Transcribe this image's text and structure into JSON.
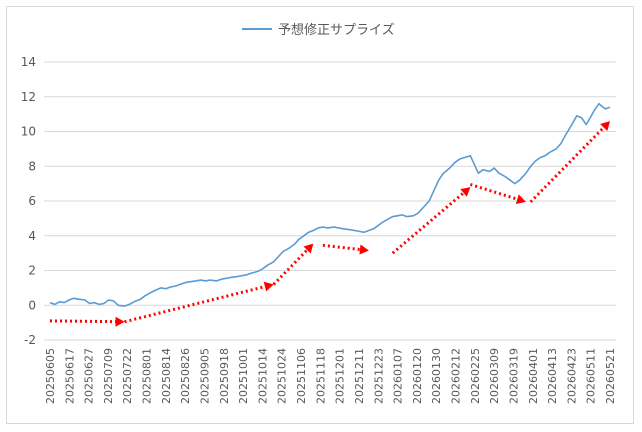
{
  "chart_data": {
    "type": "line",
    "legend": {
      "position": "top-center"
    },
    "series": [
      {
        "name": "予想修正サプライズ",
        "color": "#5b9bd5",
        "points": [
          [
            "20250605",
            0.15
          ],
          [
            "20250608",
            0.05
          ],
          [
            "20250611",
            0.2
          ],
          [
            "20250614",
            0.15
          ],
          [
            "20250617",
            0.3
          ],
          [
            "20250620",
            0.4
          ],
          [
            "20250623",
            0.35
          ],
          [
            "20250627",
            0.3
          ],
          [
            "20250630",
            0.1
          ],
          [
            "20250703",
            0.15
          ],
          [
            "20250706",
            0.05
          ],
          [
            "20250709",
            0.1
          ],
          [
            "20250712",
            0.3
          ],
          [
            "20250715",
            0.25
          ],
          [
            "20250718",
            0.0
          ],
          [
            "20250722",
            -0.05
          ],
          [
            "20250725",
            0.05
          ],
          [
            "20250728",
            0.2
          ],
          [
            "20250801",
            0.35
          ],
          [
            "20250804",
            0.55
          ],
          [
            "20250807",
            0.7
          ],
          [
            "20250810",
            0.85
          ],
          [
            "20250814",
            1.0
          ],
          [
            "20250817",
            0.95
          ],
          [
            "20250820",
            1.05
          ],
          [
            "20250823",
            1.1
          ],
          [
            "20250826",
            1.2
          ],
          [
            "20250829",
            1.3
          ],
          [
            "20250901",
            1.35
          ],
          [
            "20250905",
            1.4
          ],
          [
            "20250908",
            1.45
          ],
          [
            "20250911",
            1.4
          ],
          [
            "20250914",
            1.45
          ],
          [
            "20250918",
            1.4
          ],
          [
            "20250921",
            1.5
          ],
          [
            "20250924",
            1.55
          ],
          [
            "20250927",
            1.6
          ],
          [
            "20251001",
            1.65
          ],
          [
            "20251004",
            1.7
          ],
          [
            "20251007",
            1.75
          ],
          [
            "20251010",
            1.85
          ],
          [
            "20251014",
            1.95
          ],
          [
            "20251017",
            2.1
          ],
          [
            "20251020",
            2.3
          ],
          [
            "20251024",
            2.5
          ],
          [
            "20251027",
            2.8
          ],
          [
            "20251030",
            3.1
          ],
          [
            "20251103",
            3.3
          ],
          [
            "20251106",
            3.5
          ],
          [
            "20251109",
            3.8
          ],
          [
            "20251112",
            4.0
          ],
          [
            "20251115",
            4.2
          ],
          [
            "20251118",
            4.3
          ],
          [
            "20251121",
            4.45
          ],
          [
            "20251124",
            4.5
          ],
          [
            "20251127",
            4.45
          ],
          [
            "20251201",
            4.5
          ],
          [
            "20251204",
            4.45
          ],
          [
            "20251207",
            4.4
          ],
          [
            "20251211",
            4.35
          ],
          [
            "20251214",
            4.3
          ],
          [
            "20251217",
            4.25
          ],
          [
            "20251220",
            4.2
          ],
          [
            "20251223",
            4.3
          ],
          [
            "20251226",
            4.4
          ],
          [
            "20251229",
            4.6
          ],
          [
            "20260101",
            4.8
          ],
          [
            "20260104",
            4.95
          ],
          [
            "20260107",
            5.1
          ],
          [
            "20260110",
            5.15
          ],
          [
            "20260113",
            5.2
          ],
          [
            "20260116",
            5.1
          ],
          [
            "20260120",
            5.15
          ],
          [
            "20260123",
            5.3
          ],
          [
            "20260126",
            5.6
          ],
          [
            "20260130",
            6.0
          ],
          [
            "20260202",
            6.6
          ],
          [
            "20260205",
            7.2
          ],
          [
            "20260208",
            7.6
          ],
          [
            "20260212",
            7.9
          ],
          [
            "20260215",
            8.2
          ],
          [
            "20260218",
            8.4
          ],
          [
            "20260221",
            8.5
          ],
          [
            "20260225",
            8.6
          ],
          [
            "20260228",
            8.0
          ],
          [
            "20260302",
            7.6
          ],
          [
            "20260305",
            7.8
          ],
          [
            "20260309",
            7.7
          ],
          [
            "20260312",
            7.9
          ],
          [
            "20260315",
            7.6
          ],
          [
            "20260319",
            7.4
          ],
          [
            "20260322",
            7.2
          ],
          [
            "20260325",
            7.0
          ],
          [
            "20260328",
            7.2
          ],
          [
            "20260401",
            7.6
          ],
          [
            "20260404",
            8.0
          ],
          [
            "20260407",
            8.3
          ],
          [
            "20260410",
            8.5
          ],
          [
            "20260413",
            8.6
          ],
          [
            "20260416",
            8.8
          ],
          [
            "20260420",
            9.0
          ],
          [
            "20260423",
            9.3
          ],
          [
            "20260426",
            9.8
          ],
          [
            "20260430",
            10.4
          ],
          [
            "20260503",
            10.9
          ],
          [
            "20260506",
            10.8
          ],
          [
            "20260509",
            10.4
          ],
          [
            "20260511",
            10.7
          ],
          [
            "20260514",
            11.2
          ],
          [
            "20260517",
            11.6
          ],
          [
            "20260521",
            11.3
          ],
          [
            "20260524",
            11.4
          ]
        ]
      }
    ],
    "x_tick_labels": [
      "20250605",
      "20250617",
      "20250627",
      "20250709",
      "20250722",
      "20250801",
      "20250814",
      "20250826",
      "20250905",
      "20250918",
      "20251001",
      "20251014",
      "20251024",
      "20251106",
      "20251118",
      "20251201",
      "20251211",
      "20251223",
      "20260107",
      "20260120",
      "20260130",
      "20260212",
      "20260225",
      "20260309",
      "20260319",
      "20260401",
      "20260413",
      "20260423",
      "20260511",
      "20260521"
    ],
    "y_ticks": [
      -2,
      0,
      2,
      4,
      6,
      8,
      10,
      12,
      14
    ],
    "ylim": [
      -2,
      14
    ],
    "grid": {
      "horizontal": true,
      "vertical": false,
      "color": "#d9d9d9"
    },
    "annotations": {
      "color": "#ff0000",
      "style": "dotted-arrow",
      "arrows": [
        {
          "from": [
            "20250605",
            -0.9
          ],
          "to": [
            "20250722",
            -0.95
          ]
        },
        {
          "from": [
            "20250722",
            -0.95
          ],
          "to": [
            "20251024",
            1.2
          ]
        },
        {
          "from": [
            "20251024",
            1.2
          ],
          "to": [
            "20251118",
            3.55
          ]
        },
        {
          "from": [
            "20251124",
            3.45
          ],
          "to": [
            "20251223",
            3.15
          ]
        },
        {
          "from": [
            "20260107",
            3.0
          ],
          "to": [
            "20260225",
            6.8
          ]
        },
        {
          "from": [
            "20260225",
            6.95
          ],
          "to": [
            "20260401",
            5.95
          ]
        },
        {
          "from": [
            "20260404",
            5.95
          ],
          "to": [
            "20260524",
            10.6
          ]
        }
      ]
    }
  }
}
